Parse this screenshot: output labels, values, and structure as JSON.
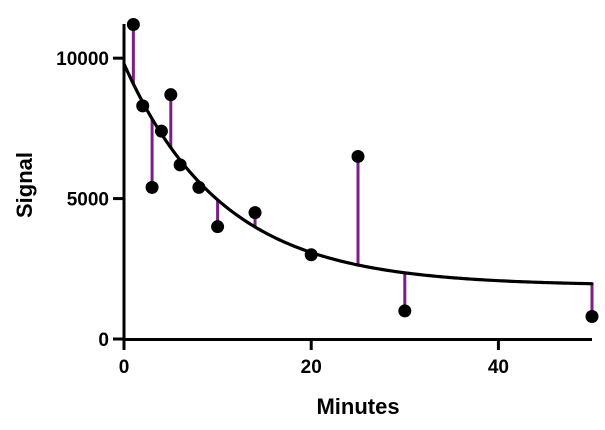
{
  "chart_data": {
    "type": "scatter",
    "xlabel": "Minutes",
    "ylabel": "Signal",
    "xlim": [
      0,
      50
    ],
    "ylim": [
      0,
      12000
    ],
    "x_ticks": [
      0,
      20,
      40
    ],
    "y_ticks": [
      0,
      5000,
      10000
    ],
    "x_tick_labels": [
      "0",
      "20",
      "40"
    ],
    "y_tick_labels": [
      "0",
      "5000",
      "10000"
    ],
    "grid": false,
    "legend": "none",
    "colors": {
      "points": "#000000",
      "curve": "#000000",
      "residuals": "#7b1f87"
    },
    "points": [
      {
        "x": 1,
        "y": 11200
      },
      {
        "x": 2,
        "y": 8300
      },
      {
        "x": 3,
        "y": 5400
      },
      {
        "x": 4,
        "y": 7400
      },
      {
        "x": 5,
        "y": 8700
      },
      {
        "x": 6,
        "y": 6200
      },
      {
        "x": 8,
        "y": 5400
      },
      {
        "x": 10,
        "y": 4000
      },
      {
        "x": 14,
        "y": 4500
      },
      {
        "x": 20,
        "y": 3000
      },
      {
        "x": 25,
        "y": 6500
      },
      {
        "x": 30,
        "y": 1000
      },
      {
        "x": 50,
        "y": 800
      }
    ],
    "curve": {
      "model": "one-phase exponential decay",
      "y0": 9800,
      "plateau": 1900,
      "k": 0.095
    }
  }
}
